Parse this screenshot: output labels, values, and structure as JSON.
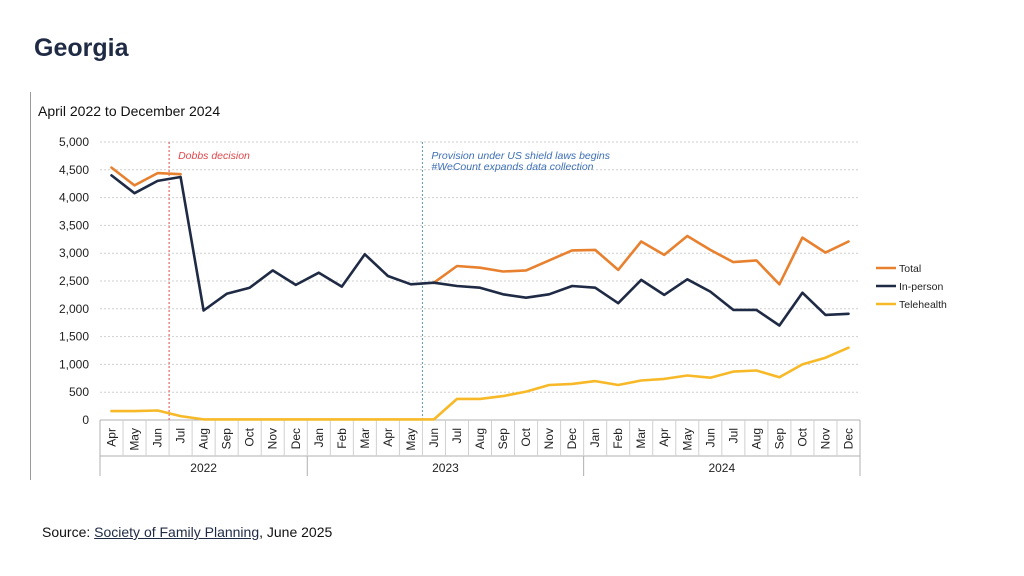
{
  "page": {
    "title": "Georgia"
  },
  "source": {
    "prefix": "Source: ",
    "link_text": "Society of Family Planning",
    "suffix": ", June 2025"
  },
  "colors": {
    "total": "#e8812f",
    "in_person": "#1f2a44",
    "telehealth": "#f7b928",
    "dobbs_line": "#e0474c",
    "shield_line": "#5a9aa8",
    "shield_text": "#3d6fb5",
    "grid": "#cfcfcf"
  },
  "chart_data": {
    "type": "line",
    "title": "April 2022 to December 2024",
    "categories": [
      "Apr",
      "May",
      "Jun",
      "Jul",
      "Aug",
      "Sep",
      "Oct",
      "Nov",
      "Dec",
      "Jan",
      "Feb",
      "Mar",
      "Apr",
      "May",
      "Jun",
      "Jul",
      "Aug",
      "Sep",
      "Oct",
      "Nov",
      "Dec",
      "Jan",
      "Feb",
      "Mar",
      "Apr",
      "May",
      "Jun",
      "Jul",
      "Aug",
      "Sep",
      "Oct",
      "Nov",
      "Dec"
    ],
    "years": [
      {
        "label": "2022",
        "start": 0,
        "end": 8
      },
      {
        "label": "2023",
        "start": 9,
        "end": 20
      },
      {
        "label": "2024",
        "start": 21,
        "end": 32
      }
    ],
    "ylim": [
      0,
      5000
    ],
    "yticks": [
      0,
      500,
      1000,
      1500,
      2000,
      2500,
      3000,
      3500,
      4000,
      4500,
      5000
    ],
    "ytick_labels": [
      "0",
      "500",
      "1,000",
      "1,500",
      "2,000",
      "2,500",
      "3,000",
      "3,500",
      "4,000",
      "4,500",
      "5,000"
    ],
    "grid": true,
    "legend_position": "right",
    "series": [
      {
        "name": "Total",
        "color_key": "total",
        "values": [
          4540,
          4220,
          4440,
          4420,
          null,
          null,
          null,
          null,
          null,
          null,
          null,
          null,
          null,
          null,
          2470,
          2770,
          2740,
          2670,
          2690,
          2870,
          3050,
          3060,
          2700,
          3210,
          2970,
          3310,
          3060,
          2840,
          2870,
          2440,
          3280,
          3010,
          3210
        ]
      },
      {
        "name": "In-person",
        "color_key": "in_person",
        "values": [
          4400,
          4080,
          4300,
          4370,
          1970,
          2270,
          2380,
          2690,
          2430,
          2650,
          2400,
          2980,
          2590,
          2440,
          2470,
          2410,
          2380,
          2260,
          2200,
          2260,
          2410,
          2380,
          2100,
          2520,
          2250,
          2530,
          2310,
          1980,
          1980,
          1700,
          2290,
          1890,
          1910
        ]
      },
      {
        "name": "Telehealth",
        "color_key": "telehealth",
        "values": [
          160,
          160,
          170,
          70,
          10,
          10,
          10,
          10,
          10,
          10,
          10,
          10,
          10,
          10,
          10,
          380,
          380,
          430,
          510,
          630,
          650,
          700,
          630,
          710,
          740,
          800,
          760,
          870,
          890,
          770,
          1000,
          1120,
          1300
        ]
      }
    ],
    "annotations": [
      {
        "text": "Dobbs decision",
        "after_index": 2,
        "color_key": "dobbs_line"
      },
      {
        "text": "Provision under US shield laws begins",
        "text2": "#WeCount expands data collection",
        "after_index": 13,
        "color_key": "shield_line"
      }
    ]
  }
}
